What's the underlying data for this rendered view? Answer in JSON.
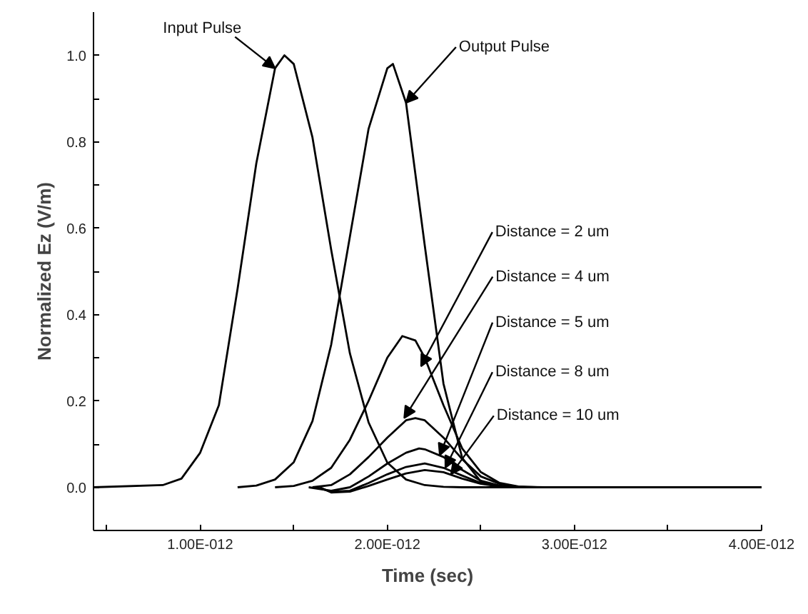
{
  "chart_data": {
    "type": "line",
    "xlabel": "Time (sec)",
    "ylabel": "Normalized Ez (V/m)",
    "xlim": [
      4.3e-13,
      4e-12
    ],
    "ylim": [
      -0.1,
      1.1
    ],
    "xticks": [
      {
        "value": 5e-13,
        "label": null
      },
      {
        "value": 1e-12,
        "label": "1.00E-012"
      },
      {
        "value": 1.5e-12,
        "label": null
      },
      {
        "value": 2e-12,
        "label": "2.00E-012"
      },
      {
        "value": 2.5e-12,
        "label": null
      },
      {
        "value": 3e-12,
        "label": "3.00E-012"
      },
      {
        "value": 3.5e-12,
        "label": null
      },
      {
        "value": 4e-12,
        "label": "4.00E-012"
      }
    ],
    "yticks": [
      {
        "value": -0.1,
        "label": null
      },
      {
        "value": 0,
        "label": "0.0"
      },
      {
        "value": 0.1,
        "label": null
      },
      {
        "value": 0.2,
        "label": "0.2"
      },
      {
        "value": 0.3,
        "label": null
      },
      {
        "value": 0.4,
        "label": "0.4"
      },
      {
        "value": 0.5,
        "label": null
      },
      {
        "value": 0.6,
        "label": "0.6"
      },
      {
        "value": 0.7,
        "label": null
      },
      {
        "value": 0.8,
        "label": "0.8"
      },
      {
        "value": 0.9,
        "label": null
      },
      {
        "value": 1.0,
        "label": "1.0"
      }
    ],
    "grid": false,
    "marker": "none",
    "line_style": "solid",
    "series": [
      {
        "color": "#000000",
        "x": [
          4.3e-13,
          8e-13,
          9e-13,
          1e-12,
          1.1e-12,
          1.2e-12,
          1.3e-12,
          1.4e-12,
          1.45e-12,
          1.5e-12,
          1.6e-12,
          1.7e-12,
          1.8e-12,
          1.9e-12,
          2e-12,
          2.1e-12,
          2.2e-12,
          2.3e-12,
          2.4e-12,
          4e-12
        ],
        "values": [
          0,
          0.005,
          0.02,
          0.08,
          0.19,
          0.46,
          0.75,
          0.97,
          1.0,
          0.98,
          0.81,
          0.55,
          0.31,
          0.15,
          0.057,
          0.018,
          0.005,
          0.001,
          0,
          0
        ]
      },
      {
        "color": "#000000",
        "x": [
          1.2e-12,
          1.3e-12,
          1.4e-12,
          1.5e-12,
          1.6e-12,
          1.7e-12,
          1.8e-12,
          1.9e-12,
          2e-12,
          2.03e-12,
          2.1e-12,
          2.2e-12,
          2.3e-12,
          2.4e-12,
          2.5e-12,
          2.6e-12,
          2.7e-12
        ],
        "values": [
          0,
          0.004,
          0.018,
          0.058,
          0.153,
          0.33,
          0.58,
          0.83,
          0.97,
          0.98,
          0.89,
          0.56,
          0.24,
          0.068,
          0.013,
          0.002,
          0
        ]
      },
      {
        "color": "#000000",
        "x": [
          1.4e-12,
          1.5e-12,
          1.6e-12,
          1.7e-12,
          1.8e-12,
          1.9e-12,
          2e-12,
          2.08e-12,
          2.15e-12,
          2.2e-12,
          2.3e-12,
          2.4e-12,
          2.5e-12,
          2.6e-12,
          2.7e-12,
          2.8e-12
        ],
        "values": [
          0,
          0.003,
          0.015,
          0.045,
          0.11,
          0.2,
          0.3,
          0.35,
          0.34,
          0.3,
          0.19,
          0.09,
          0.035,
          0.01,
          0.002,
          0
        ]
      },
      {
        "color": "#000000",
        "x": [
          1.6e-12,
          1.7e-12,
          1.8e-12,
          1.9e-12,
          2e-12,
          2.1e-12,
          2.15e-12,
          2.2e-12,
          2.3e-12,
          2.4e-12,
          2.5e-12,
          2.6e-12,
          2.7e-12,
          2.85e-12
        ],
        "values": [
          0,
          0.005,
          0.03,
          0.07,
          0.115,
          0.155,
          0.16,
          0.155,
          0.115,
          0.065,
          0.025,
          0.008,
          0.001,
          0
        ]
      },
      {
        "color": "#000000",
        "x": [
          1.58e-12,
          1.7e-12,
          1.8e-12,
          1.9e-12,
          2e-12,
          2.1e-12,
          2.17e-12,
          2.2e-12,
          2.3e-12,
          2.4e-12,
          2.5e-12,
          2.6e-12,
          2.7e-12
        ],
        "values": [
          0,
          -0.008,
          0,
          0.025,
          0.055,
          0.08,
          0.09,
          0.088,
          0.07,
          0.04,
          0.015,
          0.004,
          0
        ]
      },
      {
        "color": "#000000",
        "x": [
          1.62e-12,
          1.7e-12,
          1.8e-12,
          1.9e-12,
          2e-12,
          2.1e-12,
          2.2e-12,
          2.3e-12,
          2.4e-12,
          2.5e-12,
          2.6e-12,
          2.72e-12
        ],
        "values": [
          0,
          -0.01,
          -0.008,
          0.01,
          0.03,
          0.047,
          0.055,
          0.045,
          0.027,
          0.01,
          0.002,
          0
        ]
      },
      {
        "color": "#000000",
        "x": [
          1.64e-12,
          1.7e-12,
          1.8e-12,
          1.9e-12,
          2e-12,
          2.1e-12,
          2.2e-12,
          2.3e-12,
          2.4e-12,
          2.5e-12,
          2.6e-12,
          2.75e-12
        ],
        "values": [
          0,
          -0.012,
          -0.01,
          0.003,
          0.018,
          0.032,
          0.04,
          0.035,
          0.02,
          0.008,
          0.002,
          0
        ]
      }
    ],
    "annotations": [
      {
        "text": "Input Pulse",
        "x": 1.4e-12,
        "y": 0.97
      },
      {
        "text": "Output Pulse",
        "x": 2.1e-12,
        "y": 0.89
      },
      {
        "text": "Distance = 2 um",
        "x": 2.18e-12,
        "y": 0.28
      },
      {
        "text": "Distance = 4 um",
        "x": 2.09e-12,
        "y": 0.16
      },
      {
        "text": "Distance = 5 um",
        "x": 2.28e-12,
        "y": 0.074
      },
      {
        "text": "Distance = 8 um",
        "x": 2.31e-12,
        "y": 0.045
      },
      {
        "text": "Distance = 10 um",
        "x": 2.34e-12,
        "y": 0.03
      }
    ]
  }
}
